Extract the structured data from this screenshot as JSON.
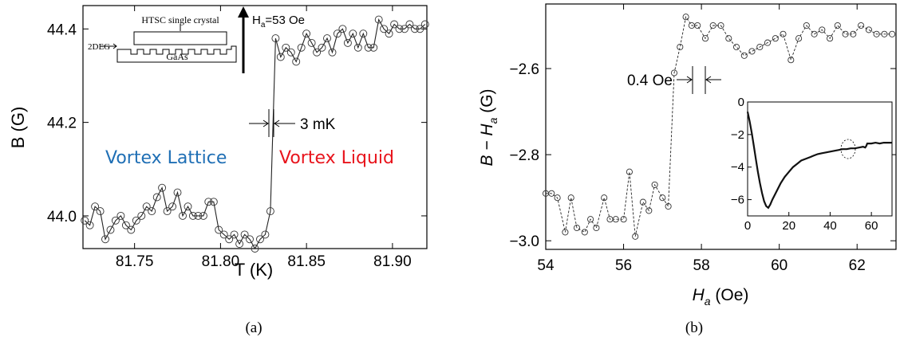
{
  "captions": {
    "a": "(a)",
    "b": "(b)"
  },
  "colors": {
    "lattice": "#1f6fb5",
    "liquid": "#e8141c",
    "marker": "#333333",
    "line": "#222222"
  },
  "chart_data": [
    {
      "id": "a",
      "type": "scatter",
      "xlabel": "T (K)",
      "ylabel": "B (G)",
      "xlim": [
        81.72,
        81.92
      ],
      "ylim": [
        43.93,
        44.45
      ],
      "xticks": [
        81.75,
        81.8,
        81.85,
        81.9
      ],
      "xtick_labels": [
        "81.75",
        "81.80",
        "81.85",
        "81.90"
      ],
      "yticks": [
        44.0,
        44.2,
        44.4
      ],
      "ytick_labels": [
        "44.0",
        "44.2",
        "44.4"
      ],
      "series": [
        {
          "x": [
            81.721,
            81.724,
            81.727,
            81.73,
            81.733,
            81.736,
            81.739,
            81.742,
            81.745,
            81.748,
            81.751,
            81.754,
            81.757,
            81.76,
            81.763,
            81.766,
            81.769,
            81.772,
            81.775,
            81.778,
            81.781,
            81.784,
            81.787,
            81.79,
            81.793,
            81.796,
            81.799,
            81.802,
            81.805,
            81.808,
            81.811,
            81.814,
            81.817,
            81.82,
            81.823,
            81.826,
            81.829,
            81.832,
            81.835,
            81.838,
            81.841,
            81.844,
            81.847,
            81.85,
            81.853,
            81.856,
            81.859,
            81.862,
            81.865,
            81.868,
            81.871,
            81.874,
            81.877,
            81.88,
            81.883,
            81.886,
            81.889,
            81.892,
            81.895,
            81.898,
            81.901,
            81.904,
            81.907,
            81.91,
            81.913,
            81.916,
            81.919
          ],
          "y": [
            43.99,
            43.98,
            44.02,
            44.01,
            43.95,
            43.97,
            43.99,
            44.0,
            43.98,
            43.97,
            43.99,
            44.0,
            44.02,
            44.01,
            44.04,
            44.06,
            44.01,
            44.02,
            44.05,
            44.0,
            44.02,
            44.0,
            44.0,
            44.0,
            44.03,
            44.03,
            43.97,
            43.96,
            43.95,
            43.96,
            43.94,
            43.96,
            43.95,
            43.93,
            43.95,
            43.96,
            44.01,
            44.38,
            44.34,
            44.36,
            44.35,
            44.33,
            44.36,
            44.39,
            44.37,
            44.35,
            44.36,
            44.38,
            44.35,
            44.39,
            44.4,
            44.37,
            44.39,
            44.36,
            44.39,
            44.36,
            44.36,
            44.42,
            44.4,
            44.39,
            44.41,
            44.4,
            44.4,
            44.41,
            44.4,
            44.4,
            44.41
          ],
          "markers": [
            1,
            1,
            1,
            1,
            1,
            1,
            1,
            1,
            1,
            1,
            1,
            1,
            1,
            1,
            1,
            1,
            1,
            1,
            1,
            1,
            1,
            1,
            1,
            1,
            1,
            1,
            1,
            1,
            1,
            1,
            1,
            1,
            1,
            1,
            1,
            1,
            1,
            1,
            1,
            1,
            1,
            1,
            1,
            1,
            1,
            1,
            1,
            1,
            1,
            1,
            1,
            1,
            1,
            1,
            1,
            1,
            1,
            1,
            1,
            1,
            1,
            1,
            1,
            1,
            1,
            1,
            1
          ]
        }
      ],
      "annotations": {
        "field": "H",
        "field_sub": "a",
        "field_value": "=53 Oe",
        "width": "3 mK",
        "lattice": "Vortex Lattice",
        "liquid": "Vortex Liquid",
        "inset_crystal": "HTSC single crystal",
        "inset_2deg": "2DEG",
        "inset_substrate": "GaAs"
      }
    },
    {
      "id": "b",
      "type": "scatter",
      "xlabel": "H",
      "xlabel_sub": "a",
      "xlabel_unit": " (Oe)",
      "ylabel": "B − H",
      "ylabel_sub": "a",
      "ylabel_unit": " (G)",
      "xlim": [
        54,
        63
      ],
      "ylim": [
        -3.02,
        -2.45
      ],
      "xticks": [
        54,
        56,
        58,
        60,
        62
      ],
      "xtick_labels": [
        "54",
        "56",
        "58",
        "60",
        "62"
      ],
      "yticks": [
        -3.0,
        -2.8,
        -2.6
      ],
      "ytick_labels": [
        "−3.0",
        "−2.8",
        "−2.6"
      ],
      "series": [
        {
          "x": [
            54.0,
            54.15,
            54.3,
            54.5,
            54.65,
            54.8,
            55.0,
            55.15,
            55.3,
            55.5,
            55.65,
            55.8,
            56.0,
            56.15,
            56.3,
            56.5,
            56.65,
            56.8,
            57.0,
            57.15,
            57.3,
            57.45,
            57.6,
            57.75,
            57.9,
            58.1,
            58.3,
            58.5,
            58.7,
            58.9,
            59.1,
            59.3,
            59.5,
            59.7,
            59.9,
            60.1,
            60.3,
            60.5,
            60.7,
            60.9,
            61.1,
            61.3,
            61.5,
            61.7,
            61.9,
            62.1,
            62.3,
            62.5,
            62.7,
            62.9
          ],
          "y": [
            -2.89,
            -2.89,
            -2.9,
            -2.98,
            -2.9,
            -2.97,
            -2.98,
            -2.95,
            -2.97,
            -2.9,
            -2.95,
            -2.95,
            -2.95,
            -2.84,
            -2.99,
            -2.91,
            -2.93,
            -2.87,
            -2.9,
            -2.92,
            -2.61,
            -2.55,
            -2.48,
            -2.5,
            -2.5,
            -2.53,
            -2.5,
            -2.5,
            -2.53,
            -2.55,
            -2.57,
            -2.56,
            -2.55,
            -2.54,
            -2.53,
            -2.52,
            -2.58,
            -2.53,
            -2.5,
            -2.52,
            -2.51,
            -2.53,
            -2.5,
            -2.52,
            -2.52,
            -2.5,
            -2.51,
            -2.52,
            -2.52,
            -2.52
          ],
          "markers": [
            1,
            1,
            1,
            1,
            1,
            1,
            1,
            1,
            1,
            1,
            1,
            1,
            1,
            1,
            1,
            1,
            1,
            1,
            1,
            1,
            1,
            1,
            1,
            1,
            1,
            1,
            1,
            1,
            1,
            1,
            1,
            1,
            1,
            1,
            1,
            1,
            1,
            1,
            1,
            1,
            1,
            1,
            1,
            1,
            1,
            1,
            1,
            1,
            1,
            1
          ]
        }
      ],
      "annotations": {
        "width": "0.4 Oe"
      },
      "inset": {
        "type": "line",
        "xlim": [
          0,
          70
        ],
        "ylim": [
          -7,
          0
        ],
        "xticks": [
          0,
          20,
          40,
          60
        ],
        "xtick_labels": [
          "0",
          "20",
          "40",
          "60"
        ],
        "yticks": [
          0,
          -2,
          -4,
          -6
        ],
        "ytick_labels": [
          "0",
          "−2",
          "−4",
          "−6"
        ],
        "x": [
          0,
          1,
          2,
          3,
          4,
          5,
          6,
          7,
          8,
          9,
          10,
          11,
          12,
          14,
          16,
          18,
          20,
          22,
          24,
          26,
          28,
          30,
          32,
          34,
          36,
          38,
          40,
          42,
          44,
          46,
          48,
          50,
          52,
          54,
          56,
          57,
          57.5,
          58,
          60,
          62,
          64,
          66,
          68,
          70
        ],
        "y": [
          -0.6,
          -1.2,
          -1.9,
          -2.7,
          -3.5,
          -4.3,
          -5.0,
          -5.6,
          -6.1,
          -6.4,
          -6.5,
          -6.3,
          -6.0,
          -5.5,
          -5.0,
          -4.6,
          -4.3,
          -4.0,
          -3.8,
          -3.6,
          -3.5,
          -3.4,
          -3.3,
          -3.2,
          -3.15,
          -3.1,
          -3.05,
          -3.0,
          -2.95,
          -2.9,
          -2.9,
          -2.85,
          -2.85,
          -2.8,
          -2.75,
          -2.8,
          -2.7,
          -2.55,
          -2.55,
          -2.5,
          -2.55,
          -2.5,
          -2.5,
          -2.5
        ]
      }
    }
  ]
}
